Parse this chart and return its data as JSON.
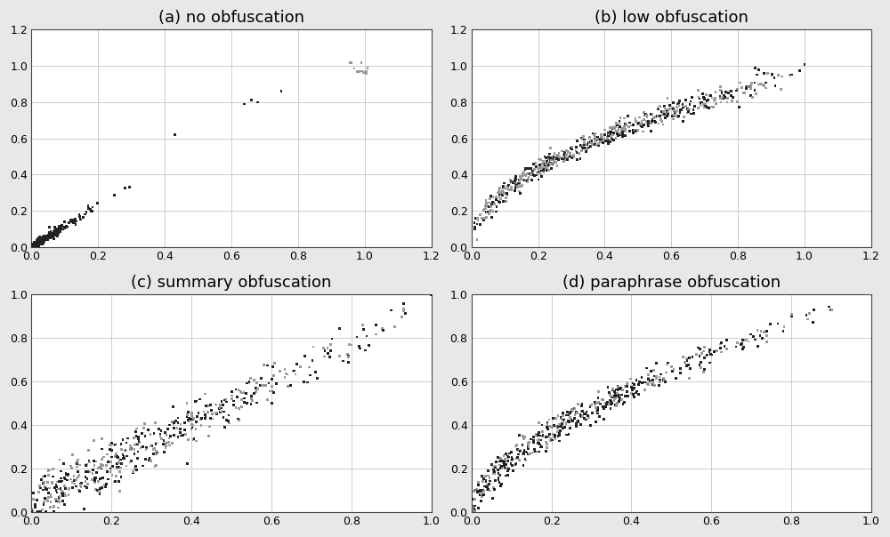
{
  "panels": [
    {
      "title": "(a) no obfuscation",
      "xlim": [
        0,
        1.2
      ],
      "ylim": [
        0,
        1.2
      ],
      "xticks": [
        0,
        0.2,
        0.4,
        0.6,
        0.8,
        1.0,
        1.2
      ],
      "yticks": [
        0,
        0.2,
        0.4,
        0.6,
        0.8,
        1.0,
        1.2
      ]
    },
    {
      "title": "(b) low obfuscation",
      "xlim": [
        0,
        1.2
      ],
      "ylim": [
        0,
        1.2
      ],
      "xticks": [
        0,
        0.2,
        0.4,
        0.6,
        0.8,
        1.0,
        1.2
      ],
      "yticks": [
        0,
        0.2,
        0.4,
        0.6,
        0.8,
        1.0,
        1.2
      ]
    },
    {
      "title": "(c) summary obfuscation",
      "xlim": [
        0,
        1.0
      ],
      "ylim": [
        0,
        1.0
      ],
      "xticks": [
        0,
        0.2,
        0.4,
        0.6,
        0.8,
        1.0
      ],
      "yticks": [
        0,
        0.2,
        0.4,
        0.6,
        0.8,
        1.0
      ]
    },
    {
      "title": "(d) paraphrase obfuscation",
      "xlim": [
        0,
        1.0
      ],
      "ylim": [
        0,
        1.0
      ],
      "xticks": [
        0,
        0.2,
        0.4,
        0.6,
        0.8,
        1.0
      ],
      "yticks": [
        0,
        0.2,
        0.4,
        0.6,
        0.8,
        1.0
      ]
    }
  ],
  "dark_color": "#222222",
  "light_color": "#999999",
  "bg_color": "#ffffff",
  "grid_color": "#cccccc",
  "outer_bg": "#e8e8e8",
  "title_fontsize": 13,
  "tick_fontsize": 9,
  "marker_size": 4,
  "marker": "s"
}
